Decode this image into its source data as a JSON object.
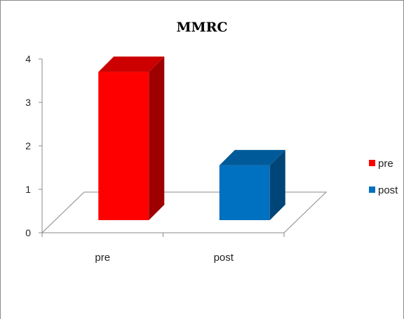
{
  "chart_data": {
    "type": "bar",
    "title": "MMRC",
    "xlabel": "",
    "ylabel": "",
    "categories": [
      "pre",
      "post"
    ],
    "series": [
      {
        "name": "pre",
        "values": [
          3.7,
          null
        ],
        "color": "#ff0000"
      },
      {
        "name": "post",
        "values": [
          null,
          1.55
        ],
        "color": "#0070c0"
      }
    ],
    "values": [
      3.7,
      1.55
    ],
    "ylim": [
      0,
      4
    ],
    "yticks": [
      0,
      1,
      2,
      3,
      4
    ],
    "grid": false,
    "style": "3d-column",
    "legend": {
      "position": "right",
      "entries": [
        {
          "label": "pre",
          "color": "#ff0000"
        },
        {
          "label": "post",
          "color": "#0070c0"
        }
      ]
    }
  }
}
